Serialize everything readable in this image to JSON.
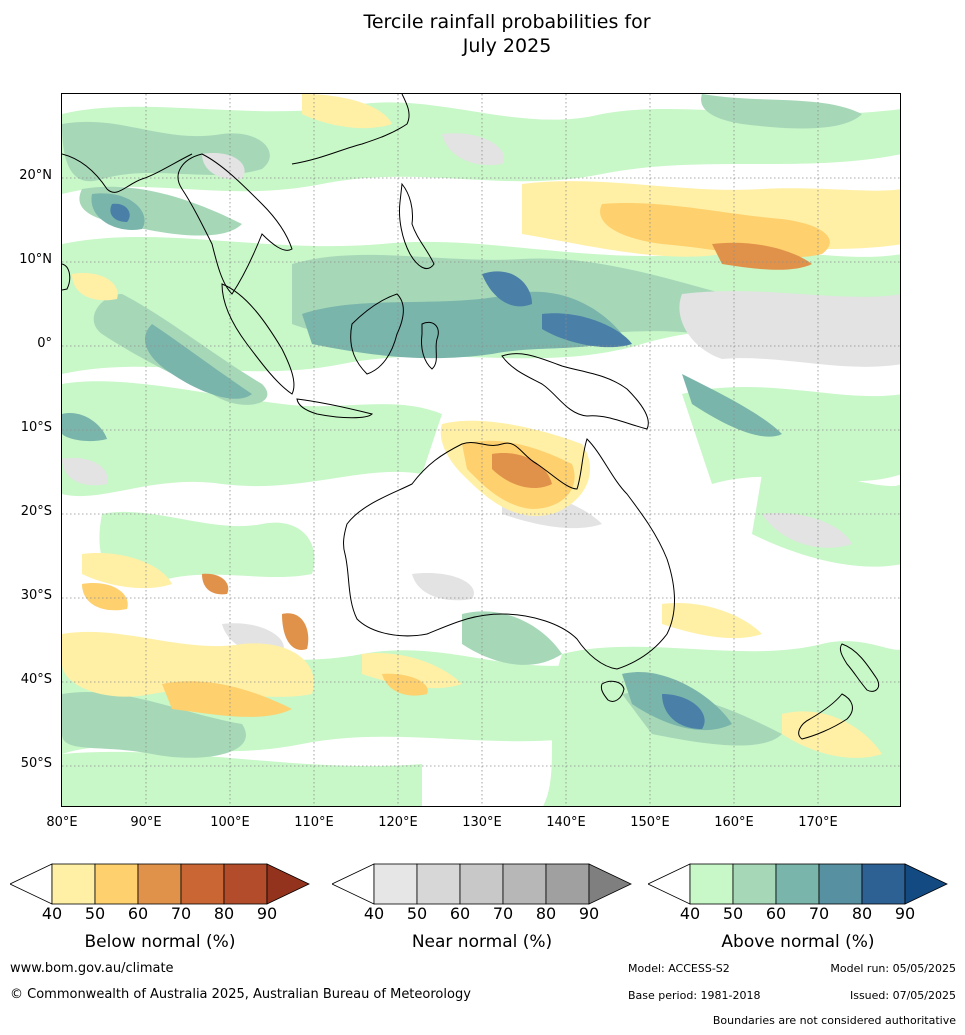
{
  "title": {
    "line1": "Tercile rainfall probabilities for",
    "line2": "July 2025"
  },
  "axes": {
    "lat_labels": [
      "20°N",
      "10°N",
      "0°",
      "10°S",
      "20°S",
      "30°S",
      "40°S",
      "50°S"
    ],
    "lon_labels": [
      "80°E",
      "90°E",
      "100°E",
      "110°E",
      "120°E",
      "130°E",
      "140°E",
      "150°E",
      "160°E",
      "170°E"
    ],
    "lon_range": [
      80,
      180
    ],
    "lat_range": [
      -55,
      30
    ]
  },
  "legends": [
    {
      "caption": "Below normal (%)",
      "ticks": [
        "40",
        "50",
        "60",
        "70",
        "80",
        "90"
      ],
      "colors": [
        "#ffffff",
        "#fff0a6",
        "#fed06e",
        "#e0924a",
        "#c96633",
        "#b24c2a",
        "#93331e"
      ]
    },
    {
      "caption": "Near normal (%)",
      "ticks": [
        "40",
        "50",
        "60",
        "70",
        "80",
        "90"
      ],
      "colors": [
        "#ffffff",
        "#e6e6e6",
        "#d7d7d7",
        "#c8c8c8",
        "#b7b7b7",
        "#a0a0a0",
        "#7f7f7f"
      ]
    },
    {
      "caption": "Above normal (%)",
      "ticks": [
        "40",
        "50",
        "60",
        "70",
        "80",
        "90"
      ],
      "colors": [
        "#ffffff",
        "#c8f7c8",
        "#a6d8b8",
        "#7ab5ab",
        "#5690a1",
        "#2d6194",
        "#134a82"
      ]
    }
  ],
  "footer": {
    "url": "www.bom.gov.au/climate",
    "copyright": "© Commonwealth of Australia 2025, Australian Bureau of Meteorology",
    "model": "Model: ACCESS-S2",
    "model_run": "Model run: 05/05/2025",
    "base_period": "Base period: 1981-2018",
    "issued": "Issued: 07/05/2025",
    "disclaimer": "Boundaries are not considered authoritative"
  }
}
